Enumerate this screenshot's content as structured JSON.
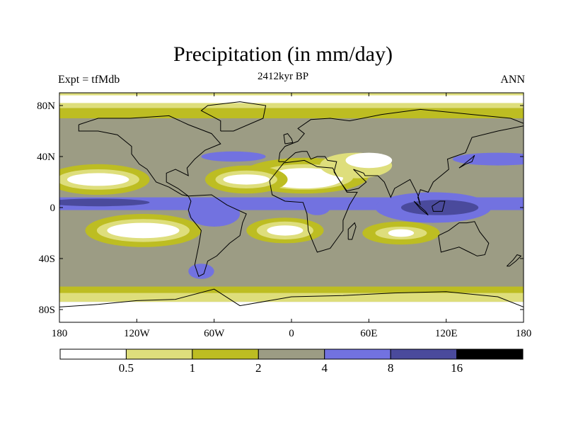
{
  "title": "Precipitation (in mm/day)",
  "left_subtitle": "Expt = tfMdb",
  "center_subtitle": "2412kyr BP",
  "right_subtitle": "ANN",
  "chart_data": {
    "type": "heatmap",
    "title": "Precipitation (in mm/day)",
    "variable": "Precipitation",
    "units": "mm/day",
    "experiment": "tfMdb",
    "period": "2412kyr BP",
    "season": "ANN",
    "x_range": [
      -180,
      180
    ],
    "y_range": [
      -90,
      90
    ],
    "x_ticks": [
      {
        "value": -180,
        "label": "180"
      },
      {
        "value": -120,
        "label": "120W"
      },
      {
        "value": -60,
        "label": "60W"
      },
      {
        "value": 0,
        "label": "0"
      },
      {
        "value": 60,
        "label": "60E"
      },
      {
        "value": 120,
        "label": "120E"
      },
      {
        "value": 180,
        "label": "180"
      }
    ],
    "y_ticks": [
      {
        "value": 80,
        "label": "80N"
      },
      {
        "value": 40,
        "label": "40N"
      },
      {
        "value": 0,
        "label": "0"
      },
      {
        "value": -40,
        "label": "40S"
      },
      {
        "value": -80,
        "label": "80S"
      }
    ],
    "levels": [
      0.5,
      1,
      2,
      4,
      8,
      16
    ],
    "level_labels": [
      "0.5",
      "1",
      "2",
      "4",
      "8",
      "16"
    ],
    "colors": [
      "#ffffff",
      "#dede7c",
      "#bdbd22",
      "#9c9c84",
      "#7272e0",
      "#4a4a9c",
      "#000000"
    ],
    "coastline_color": "#000000"
  }
}
